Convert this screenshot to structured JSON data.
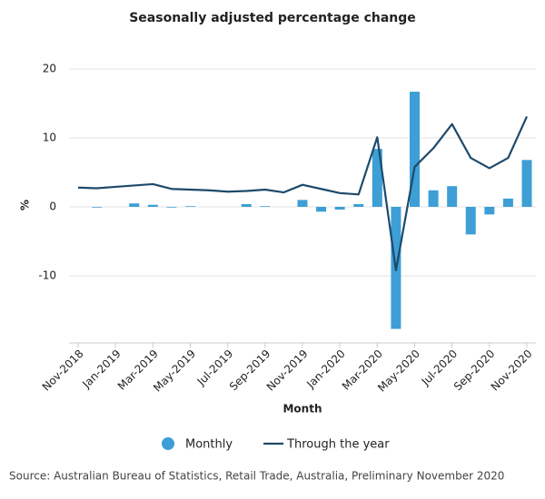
{
  "chart_data": {
    "type": "bar-line",
    "title": "Seasonally adjusted percentage change",
    "y_label": "%",
    "x_label": "Month",
    "source": "Source: Australian Bureau of Statistics, Retail Trade, Australia, Preliminary November 2020",
    "categories": [
      "Nov-2018",
      null,
      "Jan-2019",
      null,
      "Mar-2019",
      null,
      "May-2019",
      null,
      "Jul-2019",
      null,
      "Sep-2019",
      null,
      "Nov-2019",
      null,
      "Jan-2020",
      null,
      "Mar-2020",
      null,
      "May-2020",
      null,
      "Jul-2020",
      null,
      "Sep-2020",
      null,
      "Nov-2020"
    ],
    "series": [
      {
        "name": "Monthly",
        "type": "bar",
        "color": "#3d9fd5",
        "values": [
          0.0,
          -0.1,
          0.0,
          0.5,
          0.3,
          -0.1,
          0.1,
          0.0,
          0.0,
          0.4,
          0.1,
          0.0,
          1.0,
          -0.7,
          -0.4,
          0.4,
          8.4,
          -17.7,
          16.7,
          2.4,
          3.0,
          -4.0,
          -1.1,
          1.2,
          6.8
        ]
      },
      {
        "name": "Through the year",
        "type": "line",
        "color": "#1d4a6b",
        "values": [
          2.8,
          2.7,
          2.9,
          3.1,
          3.3,
          2.6,
          2.5,
          2.4,
          2.2,
          2.3,
          2.5,
          2.1,
          3.2,
          2.6,
          2.0,
          1.8,
          10.1,
          -9.2,
          5.8,
          8.5,
          12.0,
          7.1,
          5.6,
          7.1,
          13.1
        ]
      }
    ],
    "ylim": [
      -20,
      20
    ],
    "yticks": [
      -10,
      0,
      10,
      20
    ],
    "grid": true
  }
}
